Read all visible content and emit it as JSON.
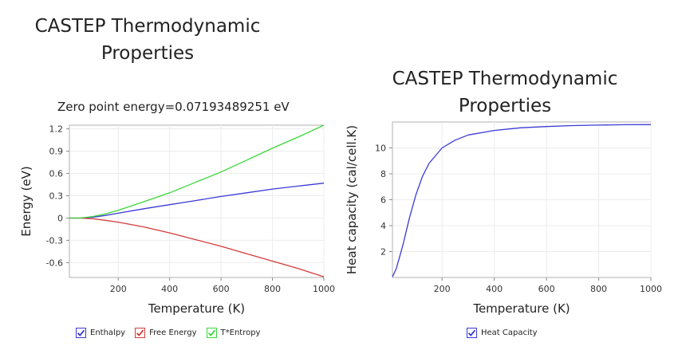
{
  "chart_data": [
    {
      "type": "line",
      "title_lines": [
        "CASTEP Thermodynamic",
        "Properties"
      ],
      "subtitle": "Zero point energy=0.07193489251 eV",
      "xlabel": "Temperature (K)",
      "ylabel": "Energy  (eV)",
      "xlim": [
        10,
        1000
      ],
      "ylim": [
        -0.8,
        1.25
      ],
      "xticks": [
        200,
        400,
        600,
        800,
        1000
      ],
      "xtick_labels": [
        "200",
        "400",
        "600",
        "800",
        "1000"
      ],
      "yticks": [
        -0.6,
        -0.3,
        0,
        0.3,
        0.6,
        0.9,
        1.2
      ],
      "ytick_labels": [
        "-0.6",
        "-0.3",
        "0",
        "0.3",
        "0.6",
        "0.9",
        "1.2"
      ],
      "grid": true,
      "x": [
        10,
        50,
        100,
        150,
        200,
        300,
        400,
        500,
        600,
        700,
        800,
        900,
        1000
      ],
      "series": [
        {
          "name": "Enthalpy",
          "color": "#3a3ad6",
          "values": [
            0,
            0.0,
            0.01,
            0.035,
            0.065,
            0.125,
            0.18,
            0.235,
            0.29,
            0.34,
            0.39,
            0.43,
            0.47
          ]
        },
        {
          "name": "Free Energy",
          "color": "#d63a3a",
          "values": [
            0,
            0.0,
            -0.01,
            -0.03,
            -0.055,
            -0.12,
            -0.2,
            -0.29,
            -0.38,
            -0.48,
            -0.58,
            -0.68,
            -0.79
          ]
        },
        {
          "name": "T*Entropy",
          "color": "#3ad63a",
          "values": [
            0,
            0.0,
            0.02,
            0.055,
            0.105,
            0.22,
            0.34,
            0.48,
            0.62,
            0.78,
            0.94,
            1.09,
            1.25
          ]
        }
      ],
      "legend": [
        "Enthalpy",
        "Free Energy",
        "T*Entropy"
      ],
      "legend_placement": "bottom"
    },
    {
      "type": "line",
      "title_lines": [
        "CASTEP Thermodynamic",
        "Properties"
      ],
      "xlabel": "Temperature (K)",
      "ylabel": "Heat capacity (cal/cell.K)",
      "xlim": [
        10,
        1000
      ],
      "ylim": [
        0,
        12
      ],
      "xticks": [
        200,
        400,
        600,
        800,
        1000
      ],
      "xtick_labels": [
        "200",
        "400",
        "600",
        "800",
        "1000"
      ],
      "yticks": [
        2,
        4,
        6,
        8,
        10
      ],
      "ytick_labels": [
        "2",
        "4",
        "6",
        "8",
        "10"
      ],
      "grid": true,
      "x": [
        10,
        25,
        50,
        75,
        100,
        125,
        150,
        200,
        250,
        300,
        400,
        500,
        600,
        700,
        800,
        900,
        1000
      ],
      "series": [
        {
          "name": "Heat Capacity",
          "color": "#3a3ad6",
          "values": [
            0.05,
            0.7,
            2.5,
            4.6,
            6.4,
            7.8,
            8.8,
            10.0,
            10.6,
            11.0,
            11.35,
            11.55,
            11.65,
            11.72,
            11.76,
            11.79,
            11.8
          ]
        }
      ],
      "legend": [
        "Heat Capacity"
      ],
      "legend_placement": "bottom"
    }
  ]
}
